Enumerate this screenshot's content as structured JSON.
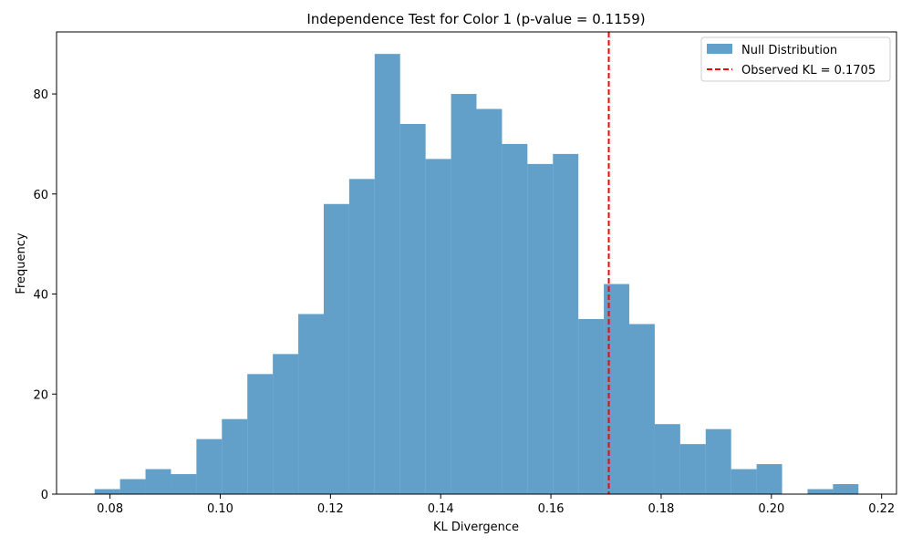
{
  "chart_data": {
    "type": "bar",
    "title": "Independence Test for Color 1 (p-value = 0.1159)",
    "xlabel": "KL Divergence",
    "ylabel": "Frequency",
    "xlim": [
      0.0703,
      0.2227
    ],
    "ylim": [
      0,
      92.4
    ],
    "xticks": [
      "0.08",
      "0.10",
      "0.12",
      "0.14",
      "0.16",
      "0.18",
      "0.20",
      "0.22"
    ],
    "xtick_values": [
      0.08,
      0.1,
      0.12,
      0.14,
      0.16,
      0.18,
      0.2,
      0.22
    ],
    "yticks": [
      "0",
      "20",
      "40",
      "60",
      "80"
    ],
    "ytick_values": [
      0,
      20,
      40,
      60,
      80
    ],
    "bin_start": 0.0772,
    "bin_width": 0.00462,
    "series": [
      {
        "name": "Null Distribution",
        "color": "#1f77b4",
        "opacity": 0.7,
        "values": [
          1,
          3,
          5,
          4,
          11,
          15,
          24,
          28,
          36,
          58,
          63,
          88,
          74,
          67,
          80,
          77,
          70,
          66,
          68,
          35,
          42,
          34,
          14,
          10,
          13,
          5,
          6,
          0,
          1,
          2
        ]
      }
    ],
    "observed_line": {
      "name": "Observed KL = 0.1705",
      "x": 0.1705,
      "color": "#ff0000",
      "style": "dashed"
    },
    "legend": {
      "placement": "top-right",
      "entries": [
        "Null Distribution",
        "Observed KL = 0.1705"
      ]
    },
    "grid": false
  }
}
